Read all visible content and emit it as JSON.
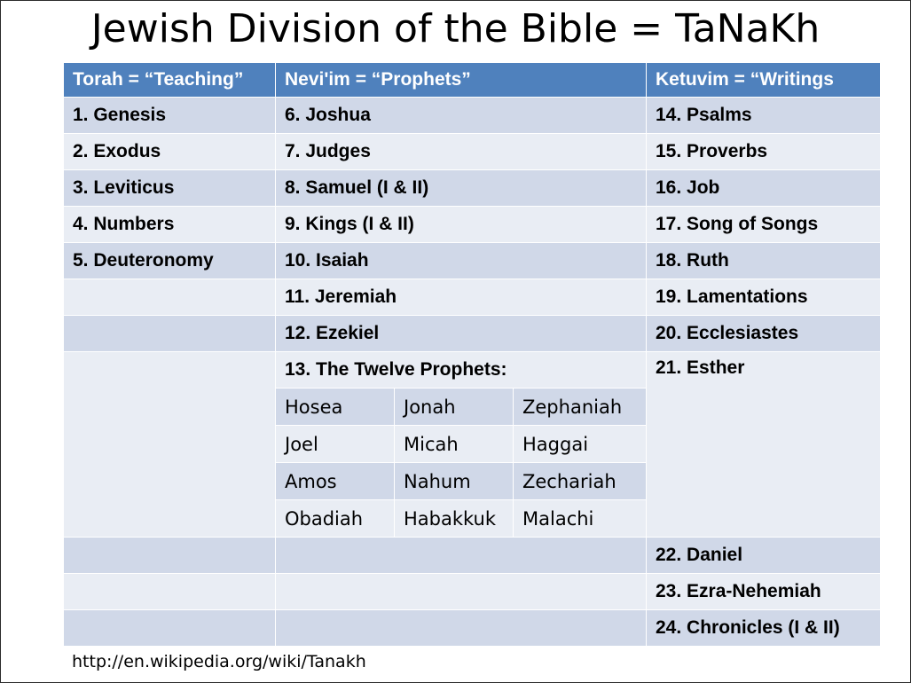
{
  "title": "Jewish Division of the Bible = TaNaKh",
  "headers": {
    "torah": "Torah = “Teaching”",
    "neviim": "Nevi'im = “Prophets”",
    "ketuvim": "Ketuvim = “Writings"
  },
  "torah": [
    "1. Genesis",
    "2. Exodus",
    "3. Leviticus",
    "4. Numbers",
    "5. Deuteronomy"
  ],
  "neviim": [
    "6. Joshua",
    "7. Judges",
    "8. Samuel (I & II)",
    "9. Kings (I & II)",
    "10. Isaiah",
    "11. Jeremiah",
    "12. Ezekiel",
    "13. The Twelve Prophets:"
  ],
  "twelve_prophets": [
    [
      "Hosea",
      "Jonah",
      "Zephaniah"
    ],
    [
      "Joel",
      "Micah",
      "Haggai"
    ],
    [
      "Amos",
      "Nahum",
      "Zechariah"
    ],
    [
      "Obadiah",
      "Habakkuk",
      "Malachi"
    ]
  ],
  "ketuvim": [
    "14. Psalms",
    "15. Proverbs",
    "16. Job",
    "17. Song of Songs",
    "18. Ruth",
    "19. Lamentations",
    "20. Ecclesiastes",
    "21. Esther",
    "22. Daniel",
    "23. Ezra-Nehemiah",
    "24. Chronicles (I & II)"
  ],
  "colors": {
    "header_background": "#4f81bd",
    "row_light": "#e9edf4",
    "row_dark": "#d0d8e8"
  },
  "source_url": "http://en.wikipedia.org/wiki/Tanakh"
}
